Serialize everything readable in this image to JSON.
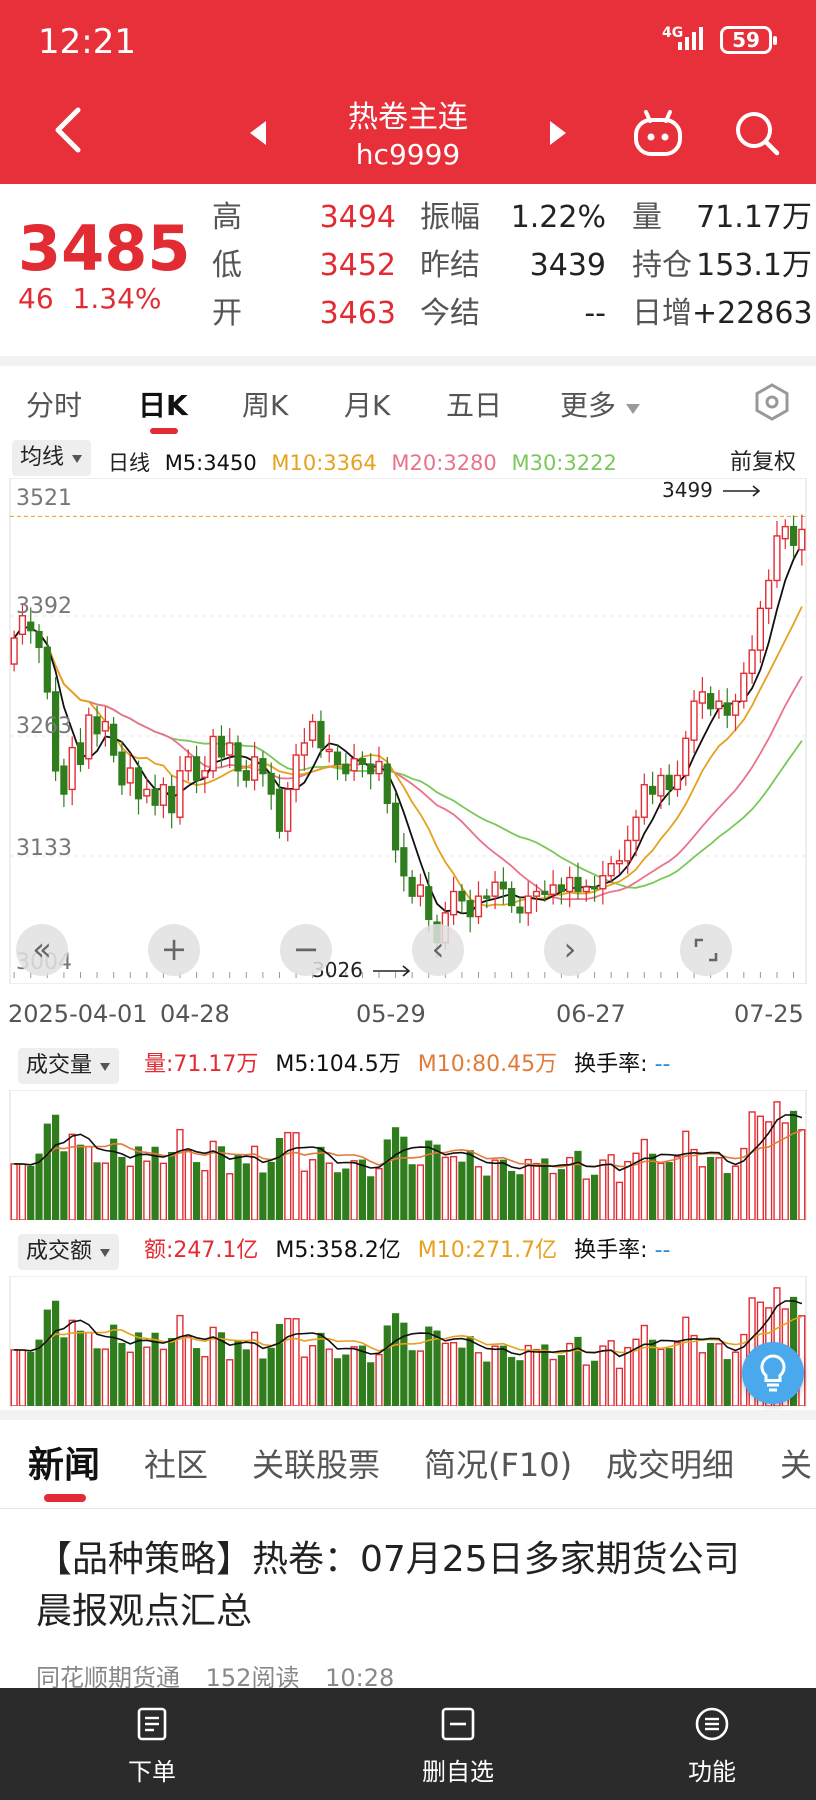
{
  "status_bar": {
    "time": "12:21",
    "network": "4G",
    "battery": "59"
  },
  "header": {
    "title": "热卷主连",
    "code": "hc9999"
  },
  "quote": {
    "price": "3485",
    "change": "46",
    "change_pct": "1.34%",
    "high_label": "高",
    "high": "3494",
    "low_label": "低",
    "low": "3452",
    "open_label": "开",
    "open": "3463",
    "amplitude_label": "振幅",
    "amplitude": "1.22%",
    "prev_settle_label": "昨结",
    "prev_settle": "3439",
    "settle_label": "今结",
    "settle": "--",
    "volume_label": "量",
    "volume": "71.17万",
    "open_interest_label": "持仓",
    "open_interest": "153.1万",
    "daily_increase_label": "日增",
    "daily_increase": "+22863"
  },
  "kline_tabs": [
    "分时",
    "日K",
    "周K",
    "月K",
    "五日",
    "更多"
  ],
  "kline_tab_active": 1,
  "ma_legend": {
    "selector": "均线",
    "period": "日线",
    "m5": "M5:3450",
    "m10": "M10:3364",
    "m20": "M20:3280",
    "m30": "M30:3222",
    "adjust": "前复权"
  },
  "price_axis": [
    "3521",
    "3392",
    "3263",
    "3133",
    "3004"
  ],
  "annotations": {
    "high": "3499",
    "low": "3026"
  },
  "dates": [
    "2025-04-01",
    "04-28",
    "05-29",
    "06-27",
    "07-25"
  ],
  "volume_legend": {
    "selector": "成交量",
    "value": "量:71.17万",
    "m5": "M5:104.5万",
    "m10": "M10:80.45万",
    "turnover": "换手率:",
    "turnover_value": "--"
  },
  "amount_legend": {
    "selector": "成交额",
    "value": "额:247.1亿",
    "m5": "M5:358.2亿",
    "m10": "M10:271.7亿",
    "turnover": "换手率:",
    "turnover_value": "--"
  },
  "news_tabs": [
    "新闻",
    "社区",
    "关联股票",
    "简况(F10)",
    "成交明细",
    "关"
  ],
  "news_item": {
    "title": "【品种策略】热卷：07月25日多家期货公司晨报观点汇总",
    "source": "同花顺期货通",
    "reads": "152阅读",
    "time": "10:28"
  },
  "bottom_nav": [
    "下单",
    "删自选",
    "功能"
  ],
  "colors": {
    "brand_red": "#e8303a",
    "up": "#e22b33",
    "down": "#2f7d1c",
    "m5": "#111111",
    "m10": "#e6a11d",
    "m20": "#e8738a",
    "m30": "#7ac85a"
  },
  "chart_data": {
    "type": "candlestick",
    "y_range": [
      3004,
      3521
    ],
    "x_dates": [
      "2025-04-01",
      "04-28",
      "05-29",
      "06-27",
      "07-25"
    ],
    "candles": [
      [
        3340,
        3368
      ],
      [
        3372,
        3392
      ],
      [
        3385,
        3376
      ],
      [
        3375,
        3358
      ],
      [
        3358,
        3310
      ],
      [
        3310,
        3225
      ],
      [
        3230,
        3200
      ],
      [
        3205,
        3250
      ],
      [
        3255,
        3232
      ],
      [
        3238,
        3285
      ],
      [
        3283,
        3265
      ],
      [
        3268,
        3278
      ],
      [
        3275,
        3242
      ],
      [
        3245,
        3210
      ],
      [
        3212,
        3228
      ],
      [
        3228,
        3195
      ],
      [
        3198,
        3205
      ],
      [
        3205,
        3188
      ],
      [
        3188,
        3210
      ],
      [
        3208,
        3180
      ],
      [
        3175,
        3225
      ],
      [
        3225,
        3240
      ],
      [
        3240,
        3215
      ],
      [
        3218,
        3225
      ],
      [
        3225,
        3262
      ],
      [
        3262,
        3240
      ],
      [
        3242,
        3255
      ],
      [
        3255,
        3225
      ],
      [
        3225,
        3215
      ],
      [
        3215,
        3240
      ],
      [
        3238,
        3222
      ],
      [
        3222,
        3200
      ],
      [
        3205,
        3160
      ],
      [
        3160,
        3205
      ],
      [
        3205,
        3242
      ],
      [
        3242,
        3255
      ],
      [
        3258,
        3278
      ],
      [
        3278,
        3250
      ],
      [
        3248,
        3248
      ],
      [
        3245,
        3232
      ],
      [
        3232,
        3222
      ],
      [
        3225,
        3238
      ],
      [
        3238,
        3232
      ],
      [
        3232,
        3222
      ],
      [
        3222,
        3235
      ],
      [
        3232,
        3190
      ],
      [
        3190,
        3140
      ],
      [
        3142,
        3112
      ],
      [
        3110,
        3090
      ],
      [
        3090,
        3102
      ],
      [
        3100,
        3065
      ],
      [
        3062,
        3040
      ],
      [
        3040,
        3072
      ],
      [
        3070,
        3095
      ],
      [
        3095,
        3085
      ],
      [
        3085,
        3068
      ],
      [
        3068,
        3090
      ],
      [
        3090,
        3088
      ],
      [
        3090,
        3105
      ],
      [
        3105,
        3098
      ],
      [
        3098,
        3080
      ],
      [
        3078,
        3072
      ],
      [
        3072,
        3090
      ],
      [
        3090,
        3095
      ],
      [
        3095,
        3092
      ],
      [
        3092,
        3102
      ],
      [
        3102,
        3095
      ],
      [
        3095,
        3110
      ],
      [
        3110,
        3095
      ],
      [
        3095,
        3100
      ],
      [
        3100,
        3098
      ],
      [
        3098,
        3112
      ],
      [
        3112,
        3125
      ],
      [
        3125,
        3128
      ],
      [
        3128,
        3150
      ],
      [
        3150,
        3175
      ],
      [
        3175,
        3210
      ],
      [
        3208,
        3200
      ],
      [
        3198,
        3220
      ],
      [
        3220,
        3205
      ],
      [
        3205,
        3220
      ],
      [
        3220,
        3260
      ],
      [
        3258,
        3300
      ],
      [
        3298,
        3310
      ],
      [
        3308,
        3292
      ],
      [
        3292,
        3300
      ],
      [
        3298,
        3285
      ],
      [
        3285,
        3300
      ],
      [
        3300,
        3330
      ],
      [
        3330,
        3355
      ],
      [
        3355,
        3400
      ],
      [
        3400,
        3430
      ],
      [
        3430,
        3478
      ],
      [
        3475,
        3488
      ],
      [
        3488,
        3468
      ],
      [
        3463,
        3485
      ]
    ],
    "ma_lines": {
      "M5": "black",
      "M10": "orange",
      "M20": "pink",
      "M30": "green"
    }
  }
}
